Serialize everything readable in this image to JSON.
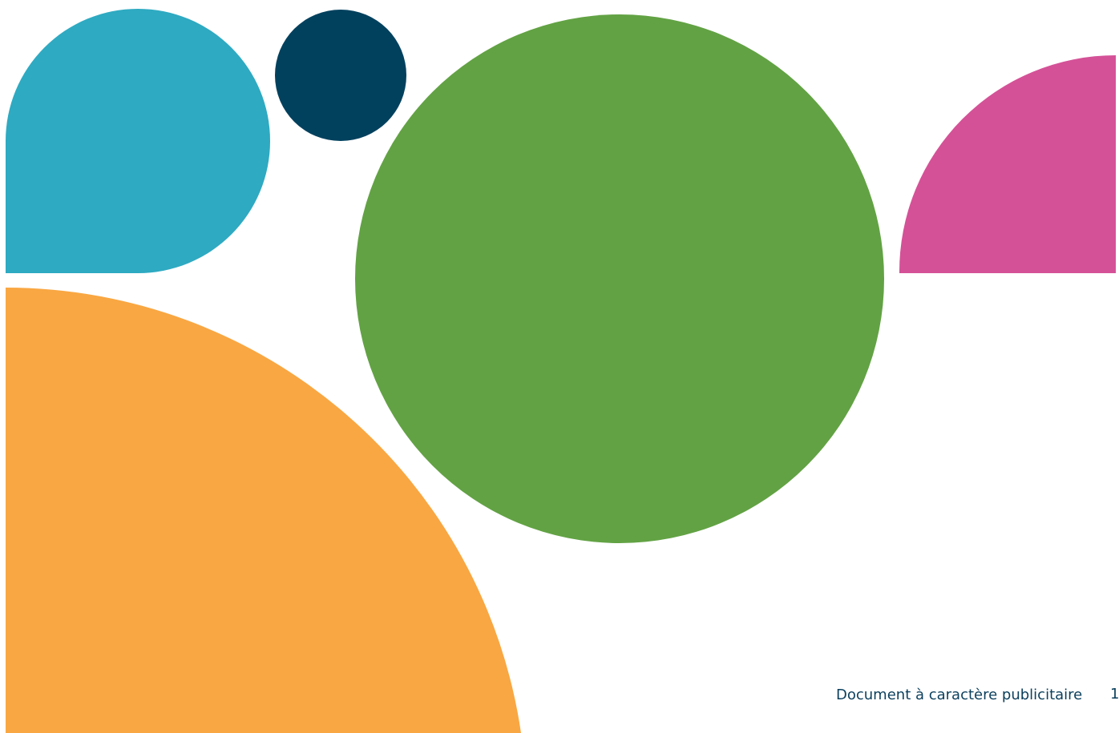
{
  "footer": {
    "disclaimer": "Document à caractère publicitaire",
    "page_number": "1"
  },
  "colors": {
    "teal": "#2EAAC2",
    "navy": "#02415E",
    "green": "#62A244",
    "pink": "#D45197",
    "orange": "#F9A742",
    "text": "#0B3F5C"
  }
}
